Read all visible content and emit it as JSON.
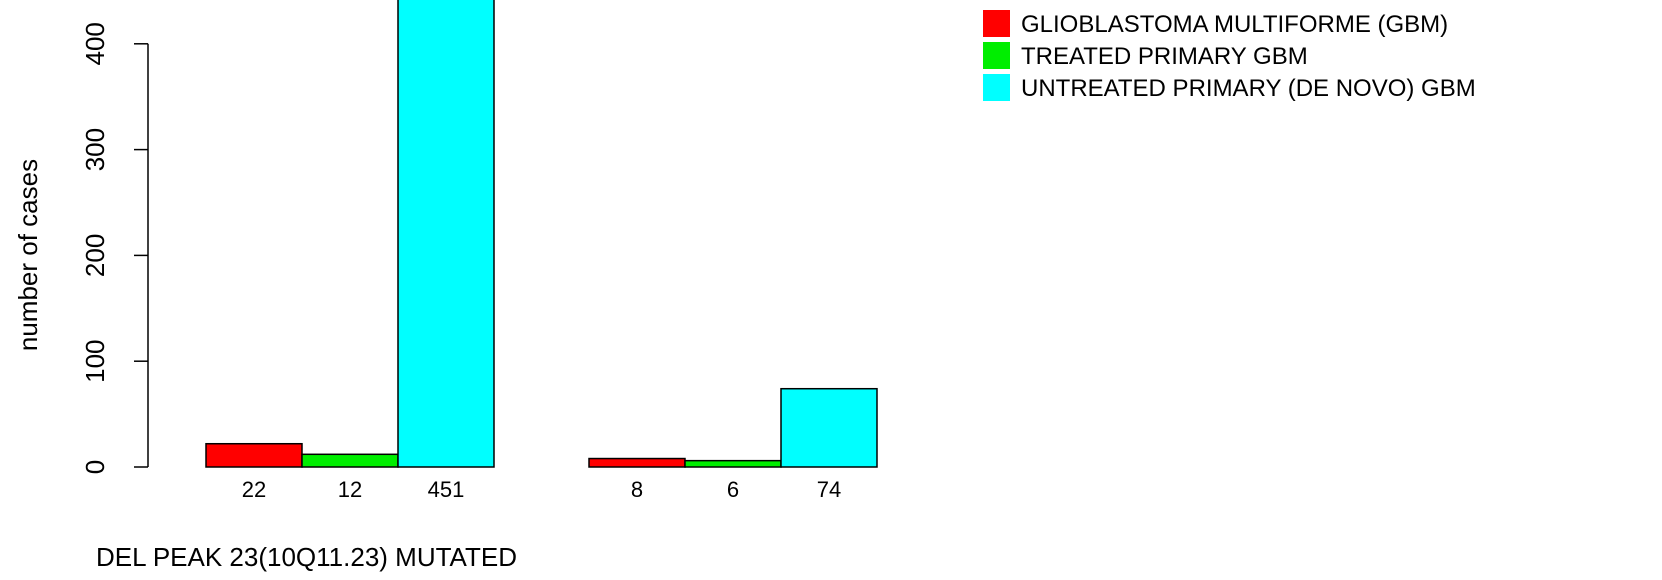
{
  "chart_data": {
    "type": "bar",
    "title": "",
    "xlabel": "DEL PEAK 23(10Q11.23) MUTATED",
    "ylabel": "number of cases",
    "ylim": [
      0,
      440
    ],
    "yticks": [
      0,
      100,
      200,
      300,
      400
    ],
    "grid": false,
    "legend_position": "top-right",
    "groups": 2,
    "series": [
      {
        "name": "GLIOBLASTOMA MULTIFORME (GBM)",
        "color": "#ff0000",
        "values": [
          22,
          8
        ]
      },
      {
        "name": "TREATED PRIMARY GBM",
        "color": "#00ee00",
        "values": [
          12,
          6
        ]
      },
      {
        "name": "UNTREATED PRIMARY (DE NOVO) GBM",
        "color": "#00ffff",
        "values": [
          451,
          74
        ]
      }
    ]
  }
}
